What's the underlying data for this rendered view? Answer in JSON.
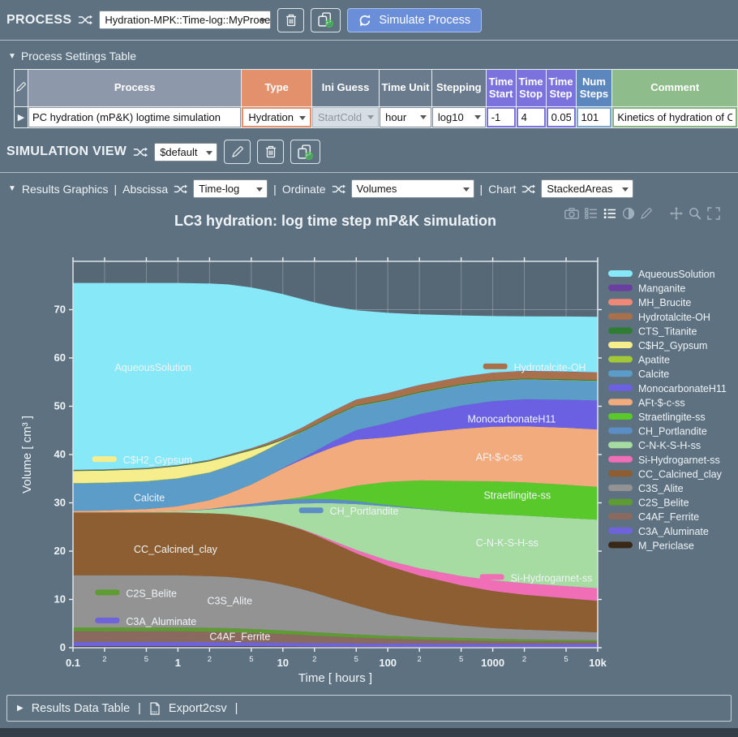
{
  "process_bar": {
    "title": "PROCESS",
    "selector_value": "Hydration-MPK::Time-log::MyProcess",
    "simulate_label": "Simulate Process"
  },
  "icons": {
    "collapse": "▼",
    "row_marker": "▶"
  },
  "divider": "|",
  "settings_section": {
    "title": "Process Settings Table"
  },
  "settings_table": {
    "headers": [
      {
        "label": "Process",
        "color": "#8d98aa"
      },
      {
        "label": "Type",
        "color": "#e2916c"
      },
      {
        "label": "Ini Guess",
        "color": "#697b8c"
      },
      {
        "label": "Time Unit",
        "color": "#697b8c"
      },
      {
        "label": "Stepping",
        "color": "#697b8c"
      },
      {
        "label": "Time Start",
        "color": "#7b72dd"
      },
      {
        "label": "Time Stop",
        "color": "#7b72dd"
      },
      {
        "label": "Time Step",
        "color": "#7b72dd"
      },
      {
        "label": "Num Steps",
        "color": "#5c87be"
      },
      {
        "label": "Comment",
        "color": "#8fbc8b"
      }
    ],
    "row": {
      "process": "PC hydration (mP&K) logtime simulation",
      "type": "Hydration",
      "ini_guess": "StartCold",
      "time_unit": "hour",
      "stepping": "log10",
      "time_start": "-1",
      "time_stop": "4",
      "time_step": "0.05",
      "num_steps": "101",
      "comment": "Kinetics of hydration of CEM-"
    }
  },
  "simulation_view": {
    "title": "SIMULATION VIEW",
    "selector_value": "$default"
  },
  "results_graphics": {
    "section_label": "Results Graphics",
    "abscissa_label": "Abscissa",
    "abscissa_value": "Time-log",
    "ordinate_label": "Ordinate",
    "ordinate_value": "Volumes",
    "chart_label": "Chart",
    "chart_value": "StackedAreas"
  },
  "chart_toolbar": {
    "icons": [
      "camera",
      "toggle-hover",
      "legend-list",
      "contrast",
      "draw",
      "pan",
      "zoom",
      "autoscale"
    ]
  },
  "results_bar": {
    "table_label": "Results Data Table",
    "export_label": "Export2csv"
  },
  "chart_data": {
    "type": "area",
    "title": "LC3 hydration: log time step mP&K simulation",
    "xlabel": "Time [ hours ]",
    "ylabel": "Volume [ cm³ ]",
    "x_scale": "log",
    "xlim": [
      0.1,
      10000
    ],
    "ylim": [
      0,
      80
    ],
    "yticks": [
      0,
      10,
      20,
      30,
      40,
      50,
      60,
      70
    ],
    "plot_bg": "#566775",
    "grid": true,
    "legend_position": "right",
    "stack_order": "bottom_to_top",
    "x": [
      0.1,
      0.2,
      0.5,
      1,
      2,
      3,
      5,
      7,
      10,
      15,
      20,
      30,
      50,
      100,
      200,
      500,
      1000,
      2000,
      5000,
      10000
    ],
    "series": [
      {
        "name": "M_Periclase",
        "color": "#3a2817",
        "values": [
          0.3,
          0.3,
          0.3,
          0.3,
          0.3,
          0.3,
          0.28,
          0.27,
          0.25,
          0.24,
          0.23,
          0.22,
          0.2,
          0.18,
          0.17,
          0.16,
          0.15,
          0.15,
          0.15,
          0.15
        ]
      },
      {
        "name": "C3A_Aluminate",
        "color": "#6f63d9",
        "values": [
          0.9,
          0.9,
          0.9,
          0.9,
          0.88,
          0.85,
          0.82,
          0.8,
          0.78,
          0.75,
          0.73,
          0.72,
          0.7,
          0.68,
          0.67,
          0.66,
          0.65,
          0.65,
          0.65,
          0.65
        ]
      },
      {
        "name": "C4AF_Ferrite",
        "color": "#8a6a5e",
        "values": [
          2.2,
          2.2,
          2.2,
          2.2,
          2.15,
          2.1,
          2.0,
          1.9,
          1.8,
          1.65,
          1.55,
          1.4,
          1.2,
          1.0,
          0.85,
          0.7,
          0.6,
          0.55,
          0.5,
          0.5
        ]
      },
      {
        "name": "C2S_Belite",
        "color": "#5f9b33",
        "values": [
          0.8,
          0.8,
          0.8,
          0.8,
          0.8,
          0.8,
          0.78,
          0.77,
          0.75,
          0.73,
          0.7,
          0.68,
          0.65,
          0.6,
          0.55,
          0.5,
          0.45,
          0.4,
          0.35,
          0.3
        ]
      },
      {
        "name": "C3S_Alite",
        "color": "#939393",
        "values": [
          10.8,
          10.8,
          10.8,
          10.8,
          10.7,
          10.6,
          10.3,
          10.0,
          9.5,
          8.8,
          8.2,
          7.2,
          6.0,
          4.5,
          3.5,
          2.6,
          2.2,
          2.0,
          1.8,
          1.6
        ]
      },
      {
        "name": "CC_Calcined_clay",
        "color": "#8d5e31",
        "values": [
          13,
          13,
          13,
          13,
          13,
          13,
          12.9,
          12.8,
          12.6,
          12.3,
          12.0,
          11.5,
          10.8,
          10.0,
          9.2,
          8.3,
          7.7,
          7.2,
          6.8,
          6.5
        ]
      },
      {
        "name": "Si-Hydrogarnet-ss",
        "color": "#ef6eb6",
        "values": [
          0,
          0,
          0,
          0,
          0,
          0,
          0,
          0,
          0.05,
          0.1,
          0.2,
          0.4,
          0.7,
          1.1,
          1.5,
          1.9,
          2.2,
          2.4,
          2.5,
          2.6
        ]
      },
      {
        "name": "C-N-K-S-H-ss",
        "color": "#a6dca2",
        "values": [
          0,
          0,
          0.1,
          0.3,
          0.8,
          1.3,
          2.2,
          3,
          4,
          5.3,
          6.3,
          7.8,
          9.5,
          11.2,
          12.3,
          13.2,
          13.7,
          14,
          14.1,
          14.2
        ]
      },
      {
        "name": "CH_Portlandite",
        "color": "#5b8ec4",
        "values": [
          0,
          0,
          0,
          0,
          0.1,
          0.3,
          0.5,
          0.65,
          0.8,
          0.9,
          0.9,
          0.8,
          0.6,
          0.3,
          0.1,
          0,
          0,
          0,
          0,
          0
        ]
      },
      {
        "name": "Straetlingite-ss",
        "color": "#58c82b",
        "values": [
          0,
          0,
          0,
          0,
          0,
          0,
          0,
          0,
          0.1,
          0.4,
          0.9,
          1.8,
          3.2,
          4.8,
          5.8,
          6.5,
          6.8,
          6.9,
          6.9,
          6.8
        ]
      },
      {
        "name": "AFt-$-c-ss",
        "color": "#f2ab7c",
        "values": [
          0.3,
          0.4,
          0.6,
          1,
          1.8,
          2.6,
          4,
          5.2,
          6.5,
          7.7,
          8.3,
          9,
          9.5,
          9.2,
          9.8,
          10.8,
          11.3,
          11.6,
          11.8,
          11.9
        ]
      },
      {
        "name": "MonocarbonateH11",
        "color": "#6c60e2",
        "values": [
          0,
          0,
          0,
          0,
          0,
          0,
          0,
          0,
          0.1,
          0.3,
          0.6,
          1.2,
          2,
          3,
          3.9,
          4.8,
          5.3,
          5.6,
          5.8,
          6
        ]
      },
      {
        "name": "Calcite",
        "color": "#5b9cc9",
        "values": [
          5.7,
          5.7,
          5.7,
          5.7,
          5.7,
          5.65,
          5.6,
          5.55,
          5.5,
          5.4,
          5.3,
          5.1,
          4.9,
          4.6,
          4.4,
          4.2,
          4.1,
          4.05,
          4,
          4
        ]
      },
      {
        "name": "Apatite",
        "color": "#a2c838",
        "values": [
          0.08,
          0.08,
          0.08,
          0.08,
          0.08,
          0.08,
          0.08,
          0.08,
          0.08,
          0.08,
          0.08,
          0.08,
          0.08,
          0.08,
          0.08,
          0.08,
          0.08,
          0.08,
          0.08,
          0.08
        ]
      },
      {
        "name": "C$H2_Gypsum",
        "color": "#f6ee8d",
        "values": [
          2.5,
          2.5,
          2.5,
          2.5,
          2.3,
          2,
          1.4,
          0.8,
          0.2,
          0,
          0,
          0,
          0,
          0,
          0,
          0,
          0,
          0,
          0,
          0
        ]
      },
      {
        "name": "CTS_Titanite",
        "color": "#2f7d33",
        "values": [
          0.15,
          0.15,
          0.15,
          0.15,
          0.15,
          0.15,
          0.15,
          0.15,
          0.15,
          0.15,
          0.15,
          0.15,
          0.15,
          0.15,
          0.15,
          0.15,
          0.15,
          0.15,
          0.15,
          0.15
        ]
      },
      {
        "name": "Hydrotalcite-OH",
        "color": "#a9714b",
        "values": [
          0,
          0,
          0,
          0,
          0.05,
          0.1,
          0.2,
          0.3,
          0.45,
          0.6,
          0.75,
          0.9,
          1.1,
          1.25,
          1.35,
          1.45,
          1.5,
          1.5,
          1.5,
          1.5
        ]
      },
      {
        "name": "MH_Brucite",
        "color": "#f08878",
        "values": [
          0.05,
          0.05,
          0.05,
          0.05,
          0.05,
          0.05,
          0.05,
          0.05,
          0.05,
          0.05,
          0.05,
          0.05,
          0.05,
          0.05,
          0.05,
          0.05,
          0.05,
          0.05,
          0.05,
          0.05
        ]
      },
      {
        "name": "Manganite",
        "color": "#6a3fa0",
        "values": [
          0.05,
          0.05,
          0.05,
          0.05,
          0.05,
          0.05,
          0.05,
          0.05,
          0.05,
          0.05,
          0.05,
          0.05,
          0.05,
          0.05,
          0.05,
          0.05,
          0.05,
          0.05,
          0.05,
          0.05
        ]
      },
      {
        "name": "AqueousSolution",
        "color": "#87e8f7",
        "values": [
          38.7,
          38.6,
          38.3,
          37.7,
          36.5,
          35.3,
          33.3,
          31.6,
          29.5,
          26.7,
          24.5,
          21.6,
          18.5,
          16.6,
          14.6,
          12.7,
          11.7,
          11.3,
          11.4,
          11.5
        ]
      }
    ],
    "annotations": [
      {
        "label": "AqueousSolution",
        "x": 0.25,
        "y": 58,
        "swatch": null
      },
      {
        "label": "C$H2_Gypsum",
        "x": 0.3,
        "y": 38.8,
        "swatch": "#f6ee8d"
      },
      {
        "label": "Calcite",
        "x": 0.38,
        "y": 31,
        "swatch": null
      },
      {
        "label": "CC_Calcined_clay",
        "x": 0.38,
        "y": 20.3,
        "swatch": null
      },
      {
        "label": "C2S_Belite",
        "x": 0.32,
        "y": 11.2,
        "swatch": "#5f9b33"
      },
      {
        "label": "C3S_Alite",
        "x": 1.9,
        "y": 9.7,
        "swatch": null
      },
      {
        "label": "C3A_Aluminate",
        "x": 0.32,
        "y": 5.4,
        "swatch": "#6f63d9"
      },
      {
        "label": "C4AF_Ferrite",
        "x": 2.0,
        "y": 2.3,
        "swatch": null
      },
      {
        "label": "CH_Portlandite",
        "x": 28,
        "y": 28.2,
        "swatch": "#5b8ec4"
      },
      {
        "label": "Hydrotalcite-OH",
        "x": 1590,
        "y": 58,
        "swatch": "#a9714b"
      },
      {
        "label": "MonocarbonateH11",
        "x": 575,
        "y": 47.3,
        "swatch": null
      },
      {
        "label": "AFt-$-c-ss",
        "x": 690,
        "y": 39.4,
        "swatch": null
      },
      {
        "label": "Straetlingite-ss",
        "x": 820,
        "y": 31.5,
        "swatch": null
      },
      {
        "label": "C-N-K-S-H-ss",
        "x": 690,
        "y": 21.7,
        "swatch": null
      },
      {
        "label": "Si-Hydrogarnet-ss",
        "x": 1480,
        "y": 14.4,
        "swatch": "#ef6eb6"
      }
    ]
  }
}
